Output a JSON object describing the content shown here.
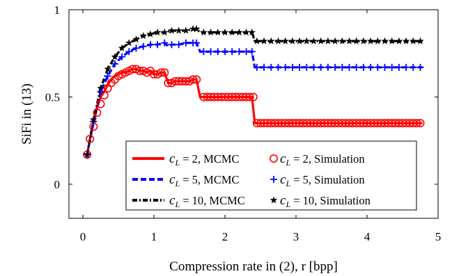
{
  "chart_data": {
    "type": "line",
    "xlabel": "Compression rate in (2), r [bpp]",
    "ylabel": "SiFi in (13)",
    "xlim": [
      0,
      5
    ],
    "ylim": [
      -0.3,
      1
    ],
    "xticks": [
      0,
      1,
      2,
      3,
      4,
      5
    ],
    "yticks": [
      0,
      0.5,
      1
    ],
    "grid": false,
    "legend_position": "bottom-right",
    "series": [
      {
        "name": "c_L = 2, MCMC",
        "label_prefix": "c",
        "label_sub": "L",
        "label_suffix": " = 2, MCMC",
        "color": "#ff0000",
        "style": "solid",
        "x": [
          0.06,
          0.1,
          0.15,
          0.2,
          0.25,
          0.3,
          0.35,
          0.4,
          0.45,
          0.5,
          0.55,
          0.6,
          0.65,
          0.7,
          0.75,
          0.8,
          0.85,
          0.9,
          0.95,
          1.0,
          1.05,
          1.1,
          1.15,
          1.2,
          1.25,
          1.3,
          1.35,
          1.4,
          1.45,
          1.5,
          1.55,
          1.6,
          1.65,
          1.7,
          2.38,
          2.42,
          4.78
        ],
        "y": [
          0.17,
          0.26,
          0.35,
          0.44,
          0.5,
          0.53,
          0.57,
          0.6,
          0.62,
          0.63,
          0.64,
          0.64,
          0.65,
          0.66,
          0.66,
          0.65,
          0.65,
          0.64,
          0.65,
          0.63,
          0.63,
          0.64,
          0.64,
          0.58,
          0.58,
          0.59,
          0.59,
          0.59,
          0.59,
          0.59,
          0.6,
          0.6,
          0.5,
          0.5,
          0.5,
          0.35,
          0.35
        ]
      },
      {
        "name": "c_L = 5, MCMC",
        "label_prefix": "c",
        "label_sub": "L",
        "label_suffix": " = 5, MCMC",
        "color": "#0000ff",
        "style": "dashed",
        "x": [
          0.06,
          0.15,
          0.25,
          0.35,
          0.45,
          0.55,
          0.65,
          0.75,
          0.85,
          0.95,
          1.05,
          1.15,
          1.2,
          1.25,
          1.35,
          1.45,
          1.55,
          1.6,
          1.65,
          2.38,
          2.42,
          4.78
        ],
        "y": [
          0.17,
          0.36,
          0.53,
          0.62,
          0.69,
          0.73,
          0.76,
          0.78,
          0.79,
          0.8,
          0.8,
          0.81,
          0.79,
          0.8,
          0.8,
          0.81,
          0.81,
          0.81,
          0.76,
          0.76,
          0.67,
          0.67
        ]
      },
      {
        "name": "c_L = 10, MCMC",
        "label_prefix": "c",
        "label_sub": "L",
        "label_suffix": " = 10, MCMC",
        "color": "#000000",
        "style": "dashdot",
        "x": [
          0.06,
          0.15,
          0.25,
          0.35,
          0.45,
          0.55,
          0.65,
          0.75,
          0.85,
          0.95,
          1.05,
          1.15,
          1.25,
          1.35,
          1.45,
          1.55,
          1.6,
          1.65,
          2.38,
          2.42,
          4.78
        ],
        "y": [
          0.17,
          0.37,
          0.55,
          0.66,
          0.73,
          0.78,
          0.81,
          0.83,
          0.85,
          0.86,
          0.87,
          0.87,
          0.88,
          0.88,
          0.88,
          0.89,
          0.89,
          0.87,
          0.87,
          0.82,
          0.82
        ]
      }
    ],
    "simulation_markers": [
      {
        "name": "c_L = 2, Simulation",
        "label_prefix": "c",
        "label_sub": "L",
        "label_suffix": " = 2, Simulation",
        "color": "#ff0000",
        "marker": "circle",
        "x": [
          0.06,
          0.1,
          0.15,
          0.2,
          0.25,
          0.3,
          0.35,
          0.4,
          0.45,
          0.5,
          0.55,
          0.6,
          0.65,
          0.7,
          0.75,
          0.8,
          0.85,
          0.9,
          0.95,
          1.0,
          1.05,
          1.1,
          1.15,
          1.2,
          1.25,
          1.3,
          1.35,
          1.4,
          1.45,
          1.5,
          1.55,
          1.6,
          1.7,
          1.75,
          1.8,
          1.85,
          1.9,
          1.95,
          2.0,
          2.05,
          2.1,
          2.15,
          2.2,
          2.25,
          2.3,
          2.35,
          2.4,
          2.45,
          2.5,
          2.55,
          2.6,
          2.65,
          2.7,
          2.75,
          2.8,
          2.85,
          2.9,
          2.95,
          3.0,
          3.05,
          3.1,
          3.15,
          3.2,
          3.25,
          3.3,
          3.35,
          3.4,
          3.45,
          3.5,
          3.55,
          3.6,
          3.65,
          3.7,
          3.75,
          3.8,
          3.85,
          3.9,
          3.95,
          4.0,
          4.05,
          4.1,
          4.15,
          4.2,
          4.25,
          4.3,
          4.35,
          4.4,
          4.45,
          4.5,
          4.55,
          4.6,
          4.65,
          4.7,
          4.75
        ],
        "y": [
          0.17,
          0.26,
          0.33,
          0.41,
          0.46,
          0.51,
          0.55,
          0.58,
          0.6,
          0.62,
          0.63,
          0.64,
          0.65,
          0.66,
          0.66,
          0.65,
          0.65,
          0.64,
          0.65,
          0.63,
          0.63,
          0.64,
          0.64,
          0.58,
          0.58,
          0.59,
          0.59,
          0.59,
          0.59,
          0.59,
          0.6,
          0.6,
          0.5,
          0.5,
          0.5,
          0.5,
          0.5,
          0.5,
          0.5,
          0.5,
          0.5,
          0.5,
          0.5,
          0.5,
          0.5,
          0.5,
          0.5,
          0.35,
          0.35,
          0.35,
          0.35,
          0.35,
          0.35,
          0.35,
          0.35,
          0.35,
          0.35,
          0.35,
          0.35,
          0.35,
          0.35,
          0.35,
          0.35,
          0.35,
          0.35,
          0.35,
          0.35,
          0.35,
          0.35,
          0.35,
          0.35,
          0.35,
          0.35,
          0.35,
          0.35,
          0.35,
          0.35,
          0.35,
          0.35,
          0.35,
          0.35,
          0.35,
          0.35,
          0.35,
          0.35,
          0.35,
          0.35,
          0.35,
          0.35,
          0.35,
          0.35,
          0.35,
          0.35,
          0.35
        ]
      },
      {
        "name": "c_L = 5, Simulation",
        "label_prefix": "c",
        "label_sub": "L",
        "label_suffix": " = 5, Simulation",
        "color": "#0000ff",
        "marker": "plus",
        "x": [
          0.06,
          0.15,
          0.25,
          0.35,
          0.45,
          0.55,
          0.65,
          0.75,
          0.85,
          0.95,
          1.05,
          1.15,
          1.25,
          1.35,
          1.45,
          1.55,
          1.6,
          1.7,
          1.8,
          1.9,
          2.0,
          2.1,
          2.2,
          2.3,
          2.38,
          2.45,
          2.55,
          2.65,
          2.75,
          2.85,
          2.95,
          3.05,
          3.15,
          3.25,
          3.35,
          3.45,
          3.55,
          3.65,
          3.75,
          3.85,
          3.95,
          4.05,
          4.15,
          4.25,
          4.35,
          4.45,
          4.55,
          4.65,
          4.75
        ],
        "y": [
          0.17,
          0.36,
          0.53,
          0.62,
          0.69,
          0.73,
          0.76,
          0.78,
          0.79,
          0.8,
          0.8,
          0.81,
          0.8,
          0.8,
          0.81,
          0.81,
          0.81,
          0.76,
          0.76,
          0.76,
          0.76,
          0.76,
          0.76,
          0.76,
          0.76,
          0.67,
          0.67,
          0.67,
          0.67,
          0.67,
          0.67,
          0.67,
          0.67,
          0.67,
          0.67,
          0.67,
          0.67,
          0.67,
          0.67,
          0.67,
          0.67,
          0.67,
          0.67,
          0.67,
          0.67,
          0.67,
          0.67,
          0.67,
          0.67
        ]
      },
      {
        "name": "c_L = 10, Simulation",
        "label_prefix": "c",
        "label_sub": "L",
        "label_suffix": " = 10, Simulation",
        "color": "#000000",
        "marker": "star",
        "x": [
          0.06,
          0.15,
          0.25,
          0.35,
          0.45,
          0.55,
          0.65,
          0.75,
          0.85,
          0.95,
          1.05,
          1.15,
          1.25,
          1.35,
          1.45,
          1.55,
          1.6,
          1.7,
          1.8,
          1.9,
          2.0,
          2.1,
          2.2,
          2.3,
          2.38,
          2.45,
          2.55,
          2.65,
          2.75,
          2.85,
          2.95,
          3.05,
          3.15,
          3.25,
          3.35,
          3.45,
          3.55,
          3.65,
          3.75,
          3.85,
          3.95,
          4.05,
          4.15,
          4.25,
          4.35,
          4.45,
          4.55,
          4.65,
          4.75
        ],
        "y": [
          0.17,
          0.37,
          0.55,
          0.66,
          0.73,
          0.78,
          0.81,
          0.83,
          0.85,
          0.86,
          0.87,
          0.87,
          0.88,
          0.88,
          0.88,
          0.89,
          0.89,
          0.87,
          0.87,
          0.87,
          0.87,
          0.87,
          0.87,
          0.87,
          0.87,
          0.82,
          0.82,
          0.82,
          0.82,
          0.82,
          0.82,
          0.82,
          0.82,
          0.82,
          0.82,
          0.82,
          0.82,
          0.82,
          0.82,
          0.82,
          0.82,
          0.82,
          0.82,
          0.82,
          0.82,
          0.82,
          0.82,
          0.82,
          0.82
        ]
      }
    ]
  }
}
